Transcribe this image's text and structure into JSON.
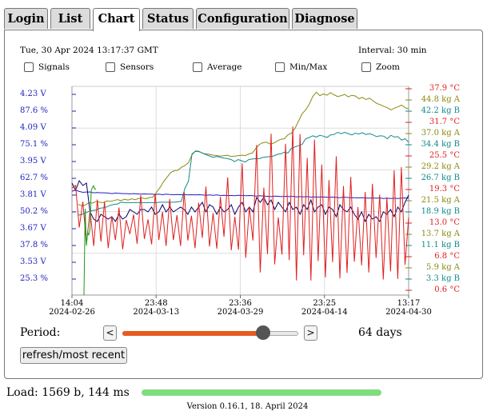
{
  "tabs": [
    {
      "label": "Login"
    },
    {
      "label": "List"
    },
    {
      "label": "Chart",
      "active": true
    },
    {
      "label": "Status"
    },
    {
      "label": "Configuration"
    },
    {
      "label": "Diagnose"
    }
  ],
  "chart_header": {
    "timestamp": "Tue, 30 Apr 2024 13:17:37 GMT",
    "interval": "Interval: 30 min"
  },
  "checkboxes": [
    {
      "label": "Signals",
      "checked": false
    },
    {
      "label": "Sensors",
      "checked": false
    },
    {
      "label": "Average",
      "checked": false
    },
    {
      "label": "Min/Max",
      "checked": false
    },
    {
      "label": "Zoom",
      "checked": false
    }
  ],
  "chart_data": {
    "type": "line",
    "left_axis_labels": [
      "4.23 V",
      "87.6 %",
      "4.09 V",
      "75.1 %",
      "3.95 V",
      "62.7 %",
      "3.81 V",
      "50.2 %",
      "3.67 V",
      "37.8 %",
      "3.53 V",
      "25.3 %"
    ],
    "right_axis_labels": [
      {
        "text": "37.9 °C",
        "color": "#e02020"
      },
      {
        "text": "44.8 kg A",
        "color": "#8a8a10"
      },
      {
        "text": "42.2 kg B",
        "color": "#108a8a"
      },
      {
        "text": "31.7 °C",
        "color": "#e02020"
      },
      {
        "text": "37.0 kg A",
        "color": "#8a8a10"
      },
      {
        "text": "34.4 kg B",
        "color": "#108a8a"
      },
      {
        "text": "25.5 °C",
        "color": "#e02020"
      },
      {
        "text": "29.2 kg A",
        "color": "#8a8a10"
      },
      {
        "text": "26.7 kg B",
        "color": "#108a8a"
      },
      {
        "text": "19.3 °C",
        "color": "#e02020"
      },
      {
        "text": "21.5 kg A",
        "color": "#8a8a10"
      },
      {
        "text": "18.9 kg B",
        "color": "#108a8a"
      },
      {
        "text": "13.0 °C",
        "color": "#e02020"
      },
      {
        "text": "13.7 kg A",
        "color": "#8a8a10"
      },
      {
        "text": "11.1 kg B",
        "color": "#108a8a"
      },
      {
        "text": "6.8 °C",
        "color": "#e02020"
      },
      {
        "text": "5.9 kg A",
        "color": "#8a8a10"
      },
      {
        "text": "3.3 kg B",
        "color": "#108a8a"
      },
      {
        "text": "0.6 °C",
        "color": "#e02020"
      }
    ],
    "x_ticks": [
      {
        "time": "14:04",
        "date": "2024-02-26"
      },
      {
        "time": "23:48",
        "date": "2024-03-13"
      },
      {
        "time": "23:36",
        "date": "2024-03-29"
      },
      {
        "time": "23:25",
        "date": "2024-04-14"
      },
      {
        "time": "13:17",
        "date": "2024-04-30"
      }
    ],
    "series_colors": {
      "voltage": "#00006a",
      "humidity": "#2020c0",
      "temperature": "#e02020",
      "weight_a": "#8a8a10",
      "weight_b": "#108a8a",
      "signal": "#1a9a1a"
    },
    "series": [
      {
        "key": "weight_a",
        "values": [
          20.6,
          20.3,
          20.5,
          21.0,
          20.9,
          21.3,
          21.1,
          21.0,
          21.4,
          21.3,
          21.5,
          21.7,
          21.5,
          21.8,
          21.6,
          21.9,
          21.7,
          22.0,
          22.1,
          21.9,
          22.2,
          22.3,
          23.4,
          24.5,
          25.9,
          26.9,
          28.0,
          28.4,
          28.5,
          29.2,
          29.6,
          30.3,
          32.1,
          33.0,
          32.9,
          32.4,
          32.3,
          32.2,
          32.0,
          31.9,
          31.8,
          31.9,
          32.0,
          31.7,
          31.8,
          31.9,
          32.0,
          31.9,
          32.3,
          32.5,
          33.6,
          34.5,
          34.9,
          35.0,
          34.6,
          34.8,
          35.3,
          35.7,
          35.8,
          36.7,
          37.1,
          38.2,
          39.9,
          41.6,
          42.5,
          43.8,
          45.6,
          46.6,
          45.8,
          46.2,
          45.9,
          46.5,
          46.0,
          45.6,
          45.8,
          46.1,
          45.5,
          45.9,
          45.7,
          45.1,
          45.4,
          44.9,
          45.2,
          44.6,
          44.0,
          43.7,
          43.3,
          43.0,
          42.5,
          42.9,
          43.2,
          43.6,
          43.0,
          42.7
        ]
      },
      {
        "key": "weight_b",
        "values": [
          18.1,
          18.3,
          18.6,
          19.0,
          19.2,
          19.3,
          19.7,
          19.8,
          20.0,
          20.4,
          20.6,
          20.7,
          21.1,
          21.0,
          21.0,
          21.0,
          21.0,
          21.0,
          21.0,
          21.0,
          21.0,
          21.0,
          21.0,
          21.1,
          21.1,
          21.1,
          21.1,
          21.1,
          21.2,
          21.3,
          24.3,
          26.0,
          32.3,
          32.9,
          32.8,
          32.5,
          32.1,
          31.8,
          31.5,
          31.7,
          31.5,
          31.3,
          31.2,
          31.0,
          30.5,
          31.0,
          30.7,
          30.4,
          31.0,
          31.1,
          31.2,
          31.2,
          31.5,
          31.6,
          31.7,
          31.8,
          32.2,
          32.3,
          32.7,
          32.5,
          33.6,
          33.9,
          34.2,
          34.5,
          35.8,
          36.1,
          36.5,
          36.2,
          36.6,
          36.4,
          36.1,
          36.7,
          36.8,
          37.3,
          37.0,
          37.3,
          37.0,
          36.7,
          37.1,
          36.9,
          37.2,
          36.8,
          37.0,
          36.7,
          36.3,
          36.5,
          36.4,
          35.8,
          36.6,
          36.2,
          36.3,
          35.5,
          35.8,
          35.0
        ]
      },
      {
        "key": "voltage",
        "values": [
          3.86,
          3.83,
          3.87,
          3.85,
          3.86,
          3.74,
          3.71,
          3.7,
          3.73,
          3.72,
          3.71,
          3.72,
          3.7,
          3.73,
          3.71,
          3.72,
          3.75,
          3.74,
          3.73,
          3.75,
          3.75,
          3.74,
          3.76,
          3.73,
          3.74,
          3.77,
          3.74,
          3.76,
          3.74,
          3.75,
          3.76,
          3.75,
          3.73,
          3.76,
          3.74,
          3.76,
          3.78,
          3.74,
          3.77,
          3.76,
          3.73,
          3.76,
          3.74,
          3.75,
          3.77,
          3.73,
          3.76,
          3.78,
          3.74,
          3.76,
          3.74,
          3.8,
          3.78,
          3.8,
          3.77,
          3.79,
          3.75,
          3.78,
          3.76,
          3.74,
          3.78,
          3.75,
          3.76,
          3.73,
          3.77,
          3.75,
          3.79,
          3.74,
          3.76,
          3.77,
          3.73,
          3.76,
          3.75,
          3.72,
          3.77,
          3.75,
          3.74,
          3.76,
          3.73,
          3.71,
          3.74,
          3.7,
          3.73,
          3.71,
          3.72,
          3.7,
          3.74,
          3.73,
          3.75,
          3.72,
          3.76,
          3.74,
          3.78,
          3.81
        ]
      },
      {
        "key": "humidity",
        "values": [
          57.9,
          58.3,
          57.8,
          57.5,
          57.6,
          57.6,
          57.3,
          57.4,
          57.3,
          57.3,
          57.2,
          57.0,
          57.2,
          57.1,
          57.0,
          57.0,
          56.9,
          57.0,
          56.9,
          56.8,
          56.9,
          56.8,
          56.8,
          56.7,
          56.8,
          56.6,
          56.8,
          56.7,
          56.6,
          56.7,
          56.6,
          56.7,
          56.5,
          56.6,
          56.5,
          56.6,
          56.5,
          56.4,
          56.5,
          56.4,
          56.5,
          56.3,
          56.4,
          56.3,
          56.3,
          56.2,
          56.4,
          56.3,
          56.2,
          56.3,
          56.2,
          56.1,
          56.2,
          56.1,
          56.0,
          55.9,
          56.1,
          56.0,
          55.9,
          56.0,
          55.9,
          56.0,
          55.8,
          55.9,
          55.8,
          55.9,
          55.7,
          55.8,
          55.7,
          55.8,
          55.7,
          55.6,
          55.7,
          55.6,
          55.5,
          55.7,
          55.6,
          55.5,
          55.5,
          55.4,
          55.5,
          55.4,
          55.3,
          55.4,
          55.3,
          55.4,
          55.2,
          55.3,
          55.2,
          55.3,
          55.2,
          55.3,
          55.4,
          55.3
        ]
      },
      {
        "key": "temperature",
        "values": [
          19.5,
          20.0,
          12.2,
          17.0,
          9.2,
          15.4,
          8.8,
          17.4,
          9.6,
          17.0,
          8.4,
          14.3,
          9.9,
          15.9,
          8.2,
          13.6,
          11.0,
          14.6,
          9.2,
          18.2,
          10.1,
          13.7,
          9.1,
          18.5,
          9.9,
          15.1,
          8.8,
          17.5,
          9.9,
          14.5,
          8.8,
          18.8,
          9.8,
          14.4,
          8.4,
          16.8,
          10.3,
          19.8,
          8.7,
          14.9,
          8.3,
          17.9,
          10.5,
          21.5,
          8.0,
          14.2,
          8.1,
          24.1,
          6.6,
          16.0,
          9.8,
          27.5,
          3.9,
          19.6,
          7.3,
          29.6,
          5.4,
          14.1,
          7.2,
          27.7,
          6.2,
          30.9,
          2.4,
          29.5,
          7.1,
          25.1,
          2.4,
          28.5,
          6.0,
          23.9,
          3.0,
          21.0,
          5.8,
          25.4,
          2.8,
          19.9,
          3.8,
          21.6,
          5.9,
          16.0,
          5.2,
          18.8,
          3.9,
          20.3,
          6.6,
          18.3,
          2.6,
          17.8,
          4.1,
          22.8,
          2.7,
          23.4,
          5.3,
          14.1
        ]
      },
      {
        "key": "signal",
        "values": [
          0.0,
          17.2,
          9.8,
          12.5,
          12.0,
          13.1,
          20.8,
          21.4,
          21.8,
          21.1,
          21.2
        ]
      }
    ]
  },
  "period": {
    "label": "Period:",
    "prev_label": "<",
    "next_label": ">",
    "value_fraction": 0.8,
    "days_text": "64 days"
  },
  "refresh_label": "refresh/most recent",
  "load_text": "Load: 1569 b, 144 ms",
  "load_fraction": 1.0,
  "version_text": "Version 0.16.1, 18. April 2024"
}
